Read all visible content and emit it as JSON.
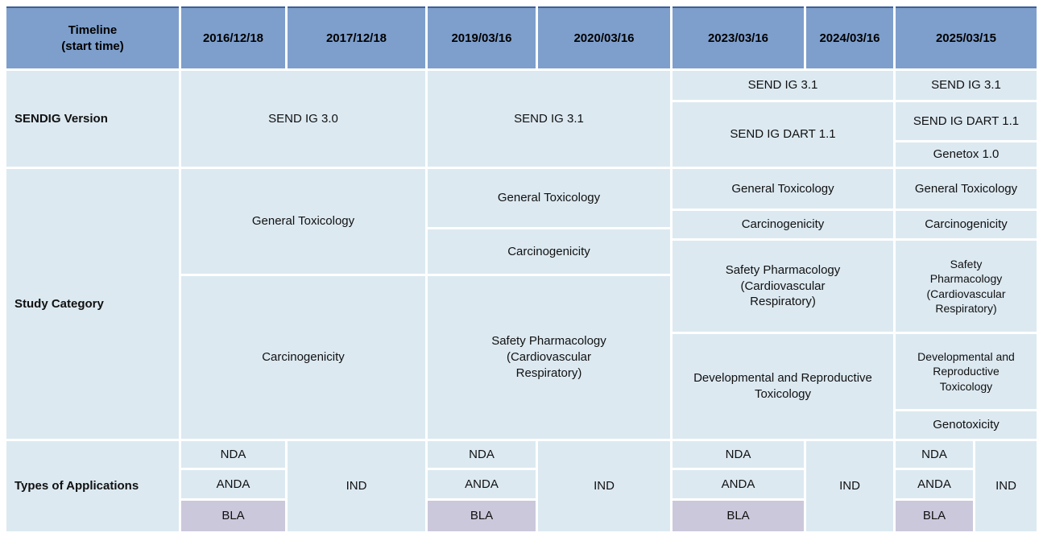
{
  "colors": {
    "header_bg": "#7E9FCC",
    "header_top_border": "#3F5F95",
    "body_bg": "#DCE9F1",
    "bla_bg": "#CBC8DC",
    "gridline": "#FFFFFF",
    "text": "#111111"
  },
  "header": {
    "timeline_label": "Timeline\n(start time)",
    "dates": [
      "2016/12/18",
      "2017/12/18",
      "2019/03/16",
      "2020/03/16",
      "2023/03/16",
      "2024/03/16",
      "2025/03/15"
    ]
  },
  "sendig": {
    "row_label": "SENDIG Version",
    "v_2016_2017": "SEND IG 3.0",
    "v_2019_2020": "SEND IG 3.1",
    "v_2023_2024_top": "SEND IG 3.1",
    "v_2023_2024_bottom": "SEND IG DART 1.1",
    "v_2025_top": "SEND IG 3.1",
    "v_2025_mid": "SEND IG DART 1.1",
    "v_2025_bottom": "Genetox 1.0"
  },
  "study": {
    "row_label": "Study Category",
    "gen_tox_2016_2017": "General Toxicology",
    "carcino_2016_2017": "Carcinogenicity",
    "gen_tox_2019_2020": "General Toxicology",
    "carcino_2019_2020": "Carcinogenicity",
    "safety_pharm_2019_2020": "Safety Pharmacology\n(Cardiovascular\nRespiratory)",
    "gen_tox_2023_2024": "General Toxicology",
    "carcino_2023_2024": "Carcinogenicity",
    "safety_pharm_2023_2024": "Safety Pharmacology\n(Cardiovascular\nRespiratory)",
    "dart_2023_2024": "Developmental and Reproductive\nToxicology",
    "gen_tox_2025": "General Toxicology",
    "carcino_2025": "Carcinogenicity",
    "safety_pharm_2025": "Safety\nPharmacology\n(Cardiovascular\nRespiratory)",
    "dart_2025": "Developmental and\nReproductive\nToxicology",
    "genotox_2025": "Genotoxicity"
  },
  "applications": {
    "row_label": "Types of Applications",
    "nda": "NDA",
    "anda": "ANDA",
    "bla": "BLA",
    "ind": "IND"
  }
}
